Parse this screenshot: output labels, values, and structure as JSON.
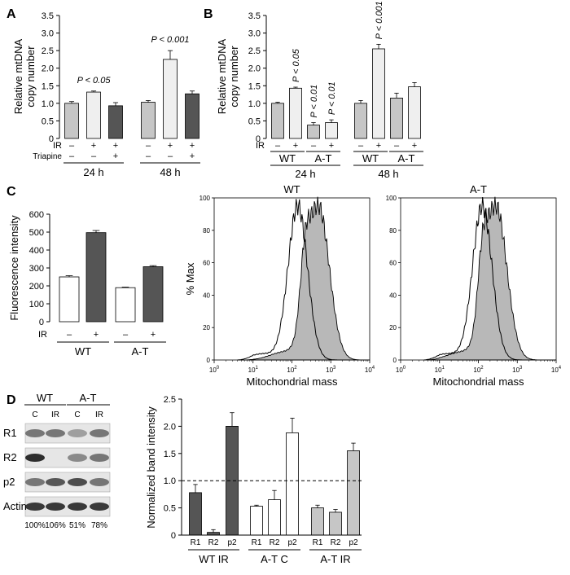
{
  "panels": {
    "A": {
      "letter": "A",
      "chart_data": {
        "type": "bar",
        "ylabel": "Relative mtDNA copy number",
        "ylim": [
          0,
          3.5
        ],
        "yticks": [
          "0",
          "0.5",
          "1.0",
          "1.5",
          "2.0",
          "2.5",
          "3.0",
          "3.5"
        ],
        "bars": [
          {
            "value": 1.0,
            "err": 0.05,
            "color": "#c6c6c6",
            "annotation": ""
          },
          {
            "value": 1.32,
            "err": 0.03,
            "color": "#efefef",
            "annotation": "P < 0.05"
          },
          {
            "value": 0.93,
            "err": 0.09,
            "color": "#555555",
            "annotation": ""
          },
          {
            "value": 1.03,
            "err": 0.05,
            "color": "#c6c6c6",
            "annotation": ""
          },
          {
            "value": 2.25,
            "err": 0.25,
            "color": "#efefef",
            "annotation": "P < 0.001"
          },
          {
            "value": 1.27,
            "err": 0.08,
            "color": "#555555",
            "annotation": ""
          }
        ],
        "rows": [
          {
            "label": "IR",
            "signs": [
              "–",
              "+",
              "+",
              "–",
              "+",
              "+"
            ]
          },
          {
            "label": "Triapine",
            "signs": [
              "–",
              "–",
              "+",
              "–",
              "–",
              "+"
            ]
          }
        ],
        "groups": [
          {
            "label": "24 h"
          },
          {
            "label": "48 h"
          }
        ]
      }
    },
    "B": {
      "letter": "B",
      "chart_data": {
        "type": "bar",
        "ylabel": "Relative mtDNA copy number",
        "ylim": [
          0,
          3.5
        ],
        "yticks": [
          "0",
          "0.5",
          "1.0",
          "1.5",
          "2.0",
          "2.5",
          "3.0",
          "3.5"
        ],
        "bars": [
          {
            "value": 1.0,
            "err": 0.03,
            "color": "#c6c6c6",
            "annotation": ""
          },
          {
            "value": 1.43,
            "err": 0.03,
            "color": "#efefef",
            "annotation": "P < 0.05"
          },
          {
            "value": 0.38,
            "err": 0.07,
            "color": "#c6c6c6",
            "annotation": "P < 0.01"
          },
          {
            "value": 0.45,
            "err": 0.08,
            "color": "#efefef",
            "annotation": "P < 0.01"
          },
          {
            "value": 1.0,
            "err": 0.08,
            "color": "#c6c6c6",
            "annotation": ""
          },
          {
            "value": 2.55,
            "err": 0.13,
            "color": "#efefef",
            "annotation": "P < 0.001"
          },
          {
            "value": 1.15,
            "err": 0.14,
            "color": "#c6c6c6",
            "annotation": ""
          },
          {
            "value": 1.47,
            "err": 0.12,
            "color": "#efefef",
            "annotation": ""
          }
        ],
        "ir_label": "IR",
        "signs": [
          "–",
          "+",
          "–",
          "+",
          "–",
          "+",
          "–",
          "+"
        ],
        "subgroups": [
          "WT",
          "A-T",
          "WT",
          "A-T"
        ],
        "groups": [
          {
            "label": "24 h"
          },
          {
            "label": "48 h"
          }
        ]
      }
    },
    "C": {
      "letter": "C",
      "bar_chart": {
        "type": "bar",
        "ylabel": "Fluorescence intensity",
        "ylim": [
          0,
          600
        ],
        "yticks": [
          "0",
          "100",
          "200",
          "300",
          "400",
          "500",
          "600"
        ],
        "bars": [
          {
            "value": 250,
            "err": 7,
            "color": "#ffffff"
          },
          {
            "value": 497,
            "err": 12,
            "color": "#555555"
          },
          {
            "value": 190,
            "err": 3,
            "color": "#ffffff"
          },
          {
            "value": 307,
            "err": 6,
            "color": "#555555"
          }
        ],
        "ir_label": "IR",
        "signs": [
          "–",
          "+",
          "–",
          "+"
        ],
        "groups": [
          {
            "label": "WT"
          },
          {
            "label": "A-T"
          }
        ]
      },
      "histograms": [
        {
          "title": "WT",
          "ylabel": "% Max",
          "xlabel": "Mitochondrial mass",
          "yticks": [
            "0",
            "20",
            "40",
            "60",
            "80",
            "100"
          ],
          "xticks": [
            "0",
            "1",
            "2",
            "3",
            "4"
          ],
          "xtick_base": "10",
          "open_peak_log": 2.15,
          "filled_peak_log": 2.68
        },
        {
          "title": "A-T",
          "ylabel": "",
          "xlabel": "Mitochondrial mass",
          "yticks": [
            "0",
            "20",
            "40",
            "60",
            "80",
            "100"
          ],
          "xticks": [
            "0",
            "1",
            "2",
            "3",
            "4"
          ],
          "xtick_base": "10",
          "open_peak_log": 2.1,
          "filled_peak_log": 2.45
        }
      ]
    },
    "D": {
      "letter": "D",
      "blot": {
        "groups": [
          "WT",
          "A-T"
        ],
        "lanes": [
          "C",
          "IR",
          "C",
          "IR"
        ],
        "rows": [
          "R1",
          "R2",
          "p2",
          "Actin"
        ],
        "percentages": [
          "100%",
          "106%",
          "51%",
          "78%"
        ]
      },
      "chart_data": {
        "type": "bar",
        "ylabel": "Normalized band intensity",
        "ylim": [
          0,
          2.5
        ],
        "yticks": [
          "0",
          "0.5",
          "1.0",
          "1.5",
          "2.0",
          "2.5"
        ],
        "reference_line": 1.0,
        "bars": [
          {
            "label": "R1",
            "value": 0.78,
            "err": 0.15,
            "color": "#555555"
          },
          {
            "label": "R2",
            "value": 0.05,
            "err": 0.05,
            "color": "#555555"
          },
          {
            "label": "p2",
            "value": 2.0,
            "err": 0.25,
            "color": "#555555"
          },
          {
            "label": "R1",
            "value": 0.53,
            "err": 0.02,
            "color": "#ffffff"
          },
          {
            "label": "R2",
            "value": 0.65,
            "err": 0.17,
            "color": "#ffffff"
          },
          {
            "label": "p2",
            "value": 1.88,
            "err": 0.27,
            "color": "#ffffff"
          },
          {
            "label": "R1",
            "value": 0.5,
            "err": 0.05,
            "color": "#c6c6c6"
          },
          {
            "label": "R2",
            "value": 0.42,
            "err": 0.05,
            "color": "#c6c6c6"
          },
          {
            "label": "p2",
            "value": 1.55,
            "err": 0.14,
            "color": "#c6c6c6"
          }
        ],
        "groups": [
          {
            "label": "WT IR"
          },
          {
            "label": "A-T C"
          },
          {
            "label": "A-T IR"
          }
        ]
      }
    }
  }
}
